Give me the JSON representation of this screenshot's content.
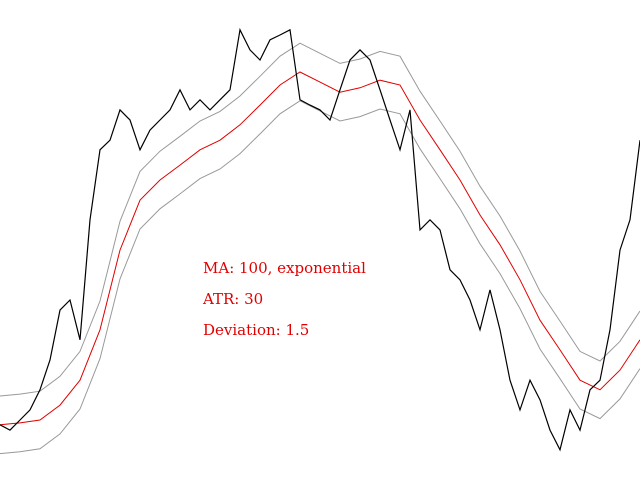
{
  "chart_data": {
    "type": "line",
    "annotations": [
      "MA: 100, exponential",
      "ATR: 30",
      "Deviation: 1.5"
    ],
    "annotation_color": "#e00000",
    "ylim": [
      0,
      100
    ],
    "series": [
      {
        "color": "#999999",
        "values": [
          17.5,
          17.9,
          18.5,
          21.6,
          26.8,
          37.3,
          53.9,
          64.3,
          68.5,
          71.6,
          74.8,
          76.8,
          80,
          84.1,
          88.3,
          91,
          88.9,
          86.8,
          87.7,
          89.3,
          88.3,
          81,
          74.8,
          68.5,
          61.2,
          55,
          47.7,
          39.3,
          33.1,
          26.8,
          24.8,
          28.9,
          35.2
        ]
      },
      {
        "color": "#999999",
        "values": [
          5.5,
          5.9,
          6.5,
          9.6,
          14.8,
          25.3,
          41.9,
          52.3,
          56.5,
          59.6,
          62.8,
          64.8,
          68,
          72.1,
          76.3,
          79,
          76.9,
          74.8,
          75.7,
          77.3,
          76.3,
          69,
          62.8,
          56.5,
          49.2,
          43,
          35.7,
          27.3,
          21.1,
          14.8,
          12.8,
          16.9,
          23.2
        ]
      },
      {
        "color": "#e00000",
        "values": [
          11.5,
          11.9,
          12.5,
          15.6,
          20.8,
          31.3,
          47.9,
          58.3,
          62.5,
          65.6,
          68.8,
          70.8,
          74,
          78.1,
          82.3,
          85,
          82.9,
          80.8,
          81.7,
          83.3,
          82.3,
          75,
          68.8,
          62.5,
          55.2,
          49,
          41.7,
          33.3,
          27.1,
          20.8,
          18.8,
          22.9,
          29.2
        ]
      },
      {
        "color": "#000000",
        "values": [
          11.5,
          10.4,
          12.5,
          14.6,
          18.8,
          25,
          35.4,
          37.5,
          29.2,
          54.2,
          68.8,
          70.8,
          77.1,
          75,
          68.8,
          72.9,
          75,
          77.1,
          81.3,
          77.1,
          79.2,
          77.1,
          79.2,
          81.3,
          93.8,
          89.6,
          87.5,
          91.7,
          92.7,
          93.8,
          79.2,
          78.1,
          77.1,
          75,
          81.3,
          87.5,
          89.6,
          87.5,
          81.3,
          75,
          68.8,
          77.1,
          52.1,
          54.2,
          52.1,
          43.8,
          41.7,
          37.5,
          31.3,
          39.6,
          31.3,
          20.8,
          14.6,
          20.8,
          16.7,
          10.4,
          6.3,
          14.6,
          10.4,
          18.8,
          20.8,
          31.3,
          47.9,
          54.2,
          70.8
        ]
      }
    ]
  }
}
